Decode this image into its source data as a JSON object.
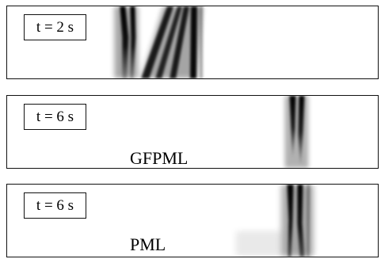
{
  "panels": [
    {
      "time_label": "t = 2 s",
      "method_label": ""
    },
    {
      "time_label": "t = 6 s",
      "method_label": "GFPML"
    },
    {
      "time_label": "t = 6 s",
      "method_label": "PML"
    }
  ],
  "colors": {
    "frame": "#111111",
    "wave": "#000000",
    "background": "#ffffff"
  }
}
